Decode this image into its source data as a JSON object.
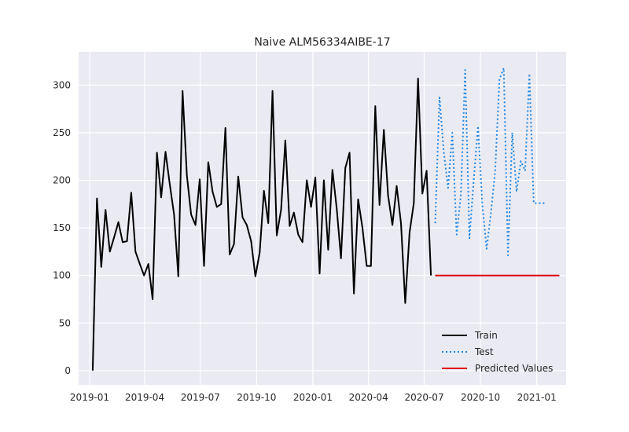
{
  "chart_data": {
    "type": "line",
    "title": "Naive ALM56334AIBE-17",
    "xlabel": "",
    "ylabel": "",
    "x_ticks": [
      "2019-01",
      "2019-04",
      "2019-07",
      "2019-10",
      "2020-01",
      "2020-04",
      "2020-07",
      "2020-10",
      "2021-01"
    ],
    "y_ticks": [
      0,
      50,
      100,
      150,
      200,
      250,
      300
    ],
    "xlim": [
      "2018-12-14",
      "2021-02-18"
    ],
    "ylim": [
      -15,
      335
    ],
    "grid": true,
    "legend_position": "lower-right",
    "colors": {
      "train": "#000000",
      "test": "#1e88e5",
      "predicted": "#e00000"
    },
    "series": [
      {
        "name": "Train",
        "style": "solid",
        "x": [
          "2019-01-06",
          "2019-01-13",
          "2019-01-20",
          "2019-01-27",
          "2019-02-03",
          "2019-02-10",
          "2019-02-17",
          "2019-02-24",
          "2019-03-03",
          "2019-03-10",
          "2019-03-17",
          "2019-03-24",
          "2019-03-31",
          "2019-04-07",
          "2019-04-14",
          "2019-04-21",
          "2019-04-28",
          "2019-05-05",
          "2019-05-12",
          "2019-05-19",
          "2019-05-26",
          "2019-06-02",
          "2019-06-09",
          "2019-06-16",
          "2019-06-23",
          "2019-06-30",
          "2019-07-07",
          "2019-07-14",
          "2019-07-21",
          "2019-07-28",
          "2019-08-04",
          "2019-08-11",
          "2019-08-18",
          "2019-08-25",
          "2019-09-01",
          "2019-09-08",
          "2019-09-15",
          "2019-09-22",
          "2019-09-29",
          "2019-10-06",
          "2019-10-13",
          "2019-10-20",
          "2019-10-27",
          "2019-11-03",
          "2019-11-10",
          "2019-11-17",
          "2019-11-24",
          "2019-12-01",
          "2019-12-08",
          "2019-12-15",
          "2019-12-22",
          "2019-12-29",
          "2020-01-05",
          "2020-01-12",
          "2020-01-19",
          "2020-01-26",
          "2020-02-02",
          "2020-02-09",
          "2020-02-16",
          "2020-02-23",
          "2020-03-01",
          "2020-03-08",
          "2020-03-15",
          "2020-03-22",
          "2020-03-29",
          "2020-04-05",
          "2020-04-12",
          "2020-04-19",
          "2020-04-26",
          "2020-05-03",
          "2020-05-10",
          "2020-05-17",
          "2020-05-24",
          "2020-05-31",
          "2020-06-07",
          "2020-06-14",
          "2020-06-21",
          "2020-06-28",
          "2020-07-05",
          "2020-07-12"
        ],
        "values": [
          0,
          181,
          109,
          169,
          125,
          140,
          156,
          135,
          136,
          187,
          125,
          112,
          100,
          112,
          75,
          229,
          182,
          230,
          196,
          164,
          99,
          294,
          205,
          164,
          153,
          201,
          110,
          219,
          188,
          172,
          175,
          255,
          122,
          133,
          204,
          161,
          153,
          136,
          99,
          124,
          189,
          155,
          294,
          142,
          169,
          242,
          152,
          166,
          143,
          135,
          200,
          172,
          203,
          102,
          200,
          127,
          211,
          170,
          118,
          213,
          229,
          81,
          180,
          150,
          110,
          110,
          278,
          174,
          253,
          184,
          153,
          194,
          155,
          71,
          145,
          176,
          307,
          186,
          210,
          100
        ]
      },
      {
        "name": "Test",
        "style": "dotted",
        "x": [
          "2020-07-19",
          "2020-07-26",
          "2020-08-02",
          "2020-08-09",
          "2020-08-16",
          "2020-08-23",
          "2020-08-30",
          "2020-09-06",
          "2020-09-13",
          "2020-09-20",
          "2020-09-27",
          "2020-10-04",
          "2020-10-11",
          "2020-10-18",
          "2020-10-25",
          "2020-11-01",
          "2020-11-08",
          "2020-11-15",
          "2020-11-22",
          "2020-11-29",
          "2020-12-06",
          "2020-12-13",
          "2020-12-20",
          "2020-12-27",
          "2021-01-03",
          "2021-01-10",
          "2021-01-17"
        ],
        "values": [
          155,
          287,
          230,
          192,
          250,
          143,
          185,
          316,
          139,
          200,
          257,
          175,
          128,
          165,
          210,
          306,
          318,
          121,
          250,
          188,
          220,
          210,
          312,
          176,
          176,
          176,
          176
        ]
      },
      {
        "name": "Predicted Values",
        "style": "solid",
        "x": [
          "2020-07-19",
          "2021-02-07"
        ],
        "values": [
          100,
          100
        ]
      }
    ]
  }
}
